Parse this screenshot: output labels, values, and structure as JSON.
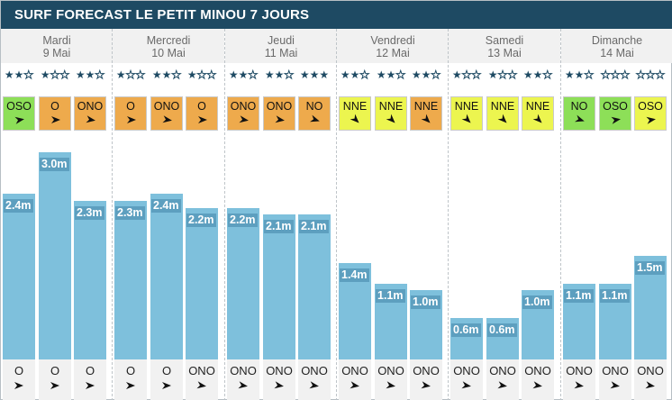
{
  "title": "SURF FORECAST LE PETIT MINOU 7 JOURS",
  "colors": {
    "header": "#1e4a63",
    "bar": "#7ec0dc",
    "bar_label": "#5d9fbf",
    "wind_offshore": "#8ddf58",
    "wind_cross": "#eeaa4c",
    "wind_onshore": "#ecf54f"
  },
  "days": [
    {
      "name": "Mardi",
      "date": "9 Mai",
      "slots": [
        {
          "stars": 2,
          "wind": "OSO",
          "wind_color": "#8ddf58",
          "wind_angle": 68,
          "height": 2.4,
          "height_label": "2.4m",
          "swell_dir": "O",
          "swell_angle": 90
        },
        {
          "stars": 1,
          "wind": "O",
          "wind_color": "#eeaa4c",
          "wind_angle": 90,
          "height": 3.0,
          "height_label": "3.0m",
          "swell_dir": "O",
          "swell_angle": 90
        },
        {
          "stars": 2,
          "wind": "ONO",
          "wind_color": "#eeaa4c",
          "wind_angle": 112,
          "height": 2.3,
          "height_label": "2.3m",
          "swell_dir": "O",
          "swell_angle": 90
        }
      ]
    },
    {
      "name": "Mercredi",
      "date": "10 Mai",
      "slots": [
        {
          "stars": 1,
          "wind": "O",
          "wind_color": "#eeaa4c",
          "wind_angle": 90,
          "height": 2.3,
          "height_label": "2.3m",
          "swell_dir": "O",
          "swell_angle": 90
        },
        {
          "stars": 2,
          "wind": "ONO",
          "wind_color": "#eeaa4c",
          "wind_angle": 112,
          "height": 2.4,
          "height_label": "2.4m",
          "swell_dir": "O",
          "swell_angle": 90
        },
        {
          "stars": 1,
          "wind": "O",
          "wind_color": "#eeaa4c",
          "wind_angle": 90,
          "height": 2.2,
          "height_label": "2.2m",
          "swell_dir": "ONO",
          "swell_angle": 112
        }
      ]
    },
    {
      "name": "Jeudi",
      "date": "11 Mai",
      "slots": [
        {
          "stars": 2,
          "wind": "ONO",
          "wind_color": "#eeaa4c",
          "wind_angle": 112,
          "height": 2.2,
          "height_label": "2.2m",
          "swell_dir": "ONO",
          "swell_angle": 112
        },
        {
          "stars": 2,
          "wind": "ONO",
          "wind_color": "#eeaa4c",
          "wind_angle": 112,
          "height": 2.1,
          "height_label": "2.1m",
          "swell_dir": "ONO",
          "swell_angle": 112
        },
        {
          "stars": 3,
          "wind": "NO",
          "wind_color": "#eeaa4c",
          "wind_angle": 135,
          "height": 2.1,
          "height_label": "2.1m",
          "swell_dir": "ONO",
          "swell_angle": 112
        }
      ]
    },
    {
      "name": "Vendredi",
      "date": "12 Mai",
      "slots": [
        {
          "stars": 2,
          "wind": "NNE",
          "wind_color": "#ecf54f",
          "wind_angle": 202,
          "height": 1.4,
          "height_label": "1.4m",
          "swell_dir": "ONO",
          "swell_angle": 112
        },
        {
          "stars": 2,
          "wind": "NNE",
          "wind_color": "#ecf54f",
          "wind_angle": 202,
          "height": 1.1,
          "height_label": "1.1m",
          "swell_dir": "ONO",
          "swell_angle": 112
        },
        {
          "stars": 2,
          "wind": "NNE",
          "wind_color": "#eeaa4c",
          "wind_angle": 202,
          "height": 1.0,
          "height_label": "1.0m",
          "swell_dir": "ONO",
          "swell_angle": 112
        }
      ]
    },
    {
      "name": "Samedi",
      "date": "13 Mai",
      "slots": [
        {
          "stars": 1,
          "wind": "NNE",
          "wind_color": "#ecf54f",
          "wind_angle": 202,
          "height": 0.6,
          "height_label": "0.6m",
          "swell_dir": "ONO",
          "swell_angle": 112
        },
        {
          "stars": 1,
          "wind": "NNE",
          "wind_color": "#ecf54f",
          "wind_angle": 202,
          "height": 0.6,
          "height_label": "0.6m",
          "swell_dir": "ONO",
          "swell_angle": 112
        },
        {
          "stars": 2,
          "wind": "NNE",
          "wind_color": "#ecf54f",
          "wind_angle": 202,
          "height": 1.0,
          "height_label": "1.0m",
          "swell_dir": "ONO",
          "swell_angle": 112
        }
      ]
    },
    {
      "name": "Dimanche",
      "date": "14 Mai",
      "slots": [
        {
          "stars": 2,
          "wind": "NO",
          "wind_color": "#8ddf58",
          "wind_angle": 135,
          "height": 1.1,
          "height_label": "1.1m",
          "swell_dir": "ONO",
          "swell_angle": 112
        },
        {
          "stars": 0,
          "wind": "OSO",
          "wind_color": "#8ddf58",
          "wind_angle": 68,
          "height": 1.1,
          "height_label": "1.1m",
          "swell_dir": "ONO",
          "swell_angle": 112
        },
        {
          "stars": 0,
          "wind": "OSO",
          "wind_color": "#ecf54f",
          "wind_angle": 68,
          "height": 1.5,
          "height_label": "1.5m",
          "swell_dir": "ONO",
          "swell_angle": 112
        }
      ]
    }
  ]
}
